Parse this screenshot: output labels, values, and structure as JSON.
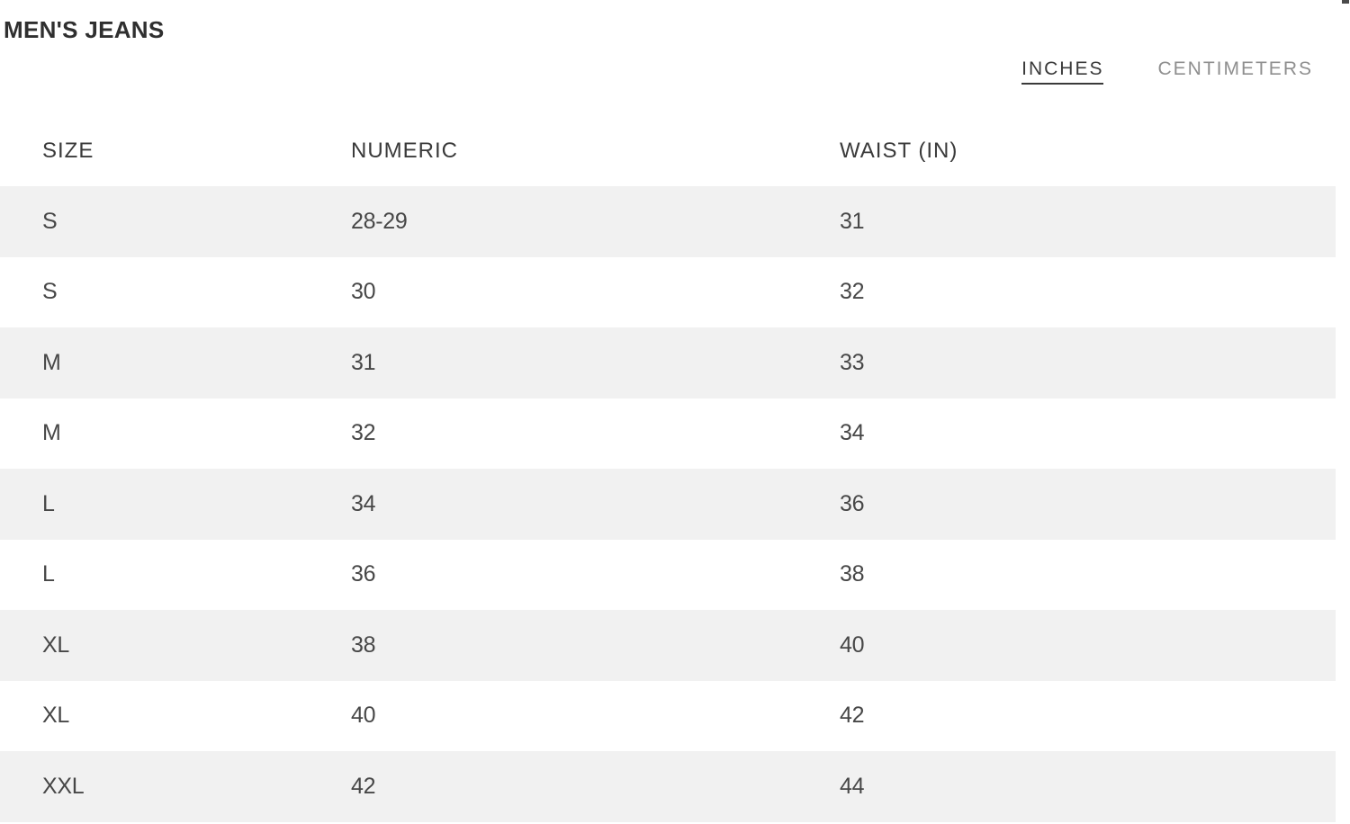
{
  "page": {
    "title": "MEN'S JEANS"
  },
  "unit_toggle": {
    "options": [
      {
        "id": "inches",
        "label": "INCHES",
        "active": true
      },
      {
        "id": "centimeters",
        "label": "CENTIMETERS",
        "active": false
      }
    ]
  },
  "size_table": {
    "columns": [
      "SIZE",
      "NUMERIC",
      "WAIST (IN)"
    ],
    "rows": [
      [
        "S",
        "28-29",
        "31"
      ],
      [
        "S",
        "30",
        "32"
      ],
      [
        "M",
        "31",
        "33"
      ],
      [
        "M",
        "32",
        "34"
      ],
      [
        "L",
        "34",
        "36"
      ],
      [
        "L",
        "36",
        "38"
      ],
      [
        "XL",
        "38",
        "40"
      ],
      [
        "XL",
        "40",
        "42"
      ],
      [
        "XXL",
        "42",
        "44"
      ]
    ]
  },
  "colors": {
    "row_alt_bg": "#f1f1f1",
    "heading_text": "#2f2f2f",
    "header_text": "#3a3a3a",
    "cell_text": "#474747",
    "active_toggle": "#3a3a3a",
    "inactive_toggle": "#8f8f8f"
  }
}
